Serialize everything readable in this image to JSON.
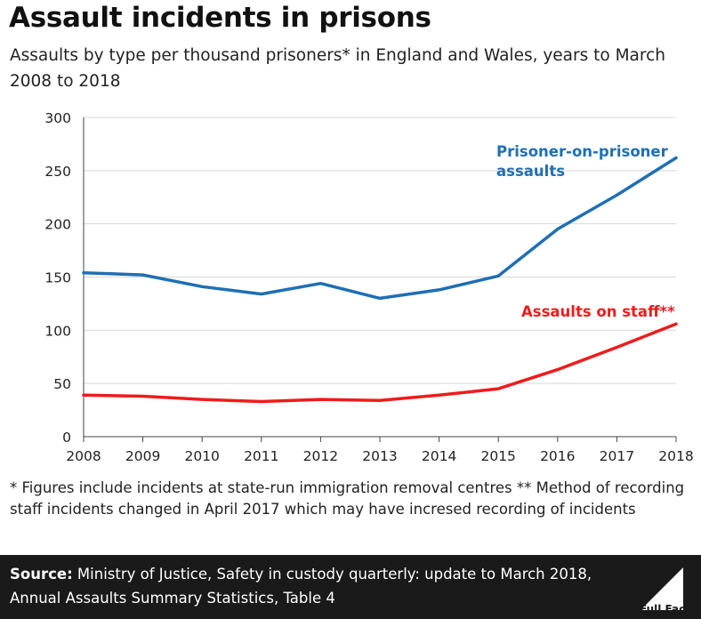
{
  "header": {
    "title": "Assault incidents in prisons",
    "subtitle": "Assaults by type per thousand prisoners* in England and Wales, years to March 2008 to 2018"
  },
  "chart_data": {
    "type": "line",
    "title": "Assault incidents in prisons",
    "xlabel": "",
    "ylabel": "",
    "x": [
      "2008",
      "2009",
      "2010",
      "2011",
      "2012",
      "2013",
      "2014",
      "2015",
      "2016",
      "2017",
      "2018"
    ],
    "ylim": [
      0,
      300
    ],
    "yticks": [
      "0",
      "50",
      "100",
      "150",
      "200",
      "250",
      "300"
    ],
    "grid": true,
    "series": [
      {
        "name": "Prisoner-on-prisoner assaults",
        "label_lines": [
          "Prisoner-on-prisoner",
          "assaults"
        ],
        "color": "#1f6fb4",
        "values": [
          154,
          152,
          141,
          134,
          144,
          130,
          138,
          151,
          195,
          227,
          262
        ]
      },
      {
        "name": "Assaults on staff**",
        "label_lines": [
          "Assaults on staff**"
        ],
        "color": "#ee1c1c",
        "values": [
          39,
          38,
          35,
          33,
          35,
          34,
          39,
          45,
          63,
          84,
          106
        ]
      }
    ]
  },
  "footnote": "* Figures include incidents at state-run immigration removal centres ** Method of recording staff incidents changed in April 2017 which may have incresed recording of incidents",
  "source": {
    "label": "Source:",
    "text": " Ministry of Justice, Safety in custody quarterly: update to March 2018, Annual Assaults Summary Statistics, Table 4"
  },
  "logo": {
    "text": "Full Fact"
  }
}
